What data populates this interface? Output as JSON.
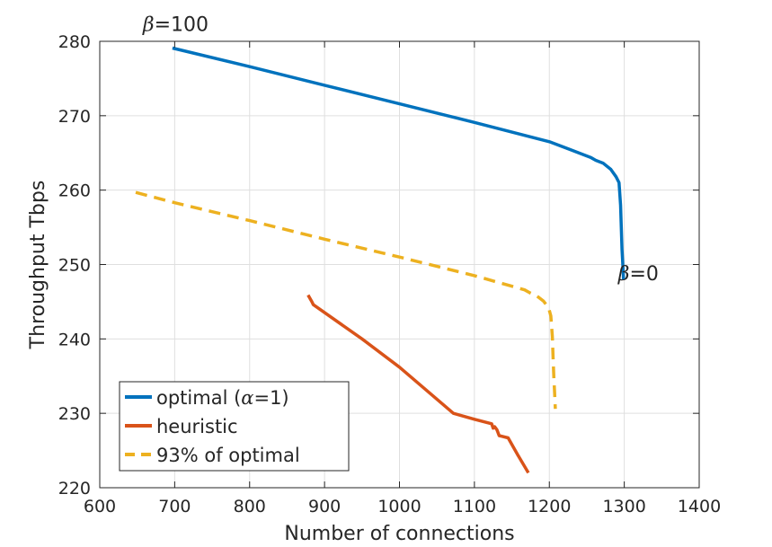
{
  "chart_data": {
    "type": "line",
    "title": "",
    "xlabel": "Number of connections",
    "ylabel": "Throughput Tbps",
    "xlim": [
      600,
      1400
    ],
    "ylim": [
      220,
      280
    ],
    "xticks": [
      600,
      700,
      800,
      900,
      1000,
      1100,
      1200,
      1300,
      1400
    ],
    "yticks": [
      220,
      230,
      240,
      250,
      260,
      270,
      280
    ],
    "xtick_labels": [
      "600",
      "700",
      "800",
      "900",
      "1000",
      "1100",
      "1200",
      "1300",
      "1400"
    ],
    "ytick_labels": [
      "220",
      "230",
      "240",
      "250",
      "260",
      "270",
      "280"
    ],
    "grid": true,
    "legend_position": "bottom-left",
    "series": [
      {
        "name": "optimal (α=1)",
        "legend_prefix": "optimal (",
        "legend_symbol": "α",
        "legend_suffix": "=1)",
        "color": "#0072BD",
        "style": "solid",
        "x": [
          697,
          800,
          900,
          1000,
          1100,
          1200,
          1255,
          1262,
          1272,
          1282,
          1289,
          1293,
          1295,
          1296,
          1297,
          1298,
          1299
        ],
        "y": [
          279.1,
          276.6,
          274.1,
          271.6,
          269.1,
          266.5,
          264.4,
          264.0,
          263.6,
          262.8,
          261.8,
          261.0,
          258.0,
          255.0,
          252.0,
          250.0,
          248.0
        ]
      },
      {
        "name": "heuristic",
        "legend_prefix": "heuristic",
        "legend_symbol": "",
        "legend_suffix": "",
        "color": "#D95319",
        "style": "solid",
        "x": [
          878,
          883,
          885,
          950,
          1000,
          1072,
          1100,
          1123,
          1125,
          1127,
          1130,
          1133,
          1137,
          1145,
          1158,
          1172
        ],
        "y": [
          245.9,
          245.0,
          244.6,
          240.0,
          236.2,
          230.0,
          229.2,
          228.6,
          228.0,
          228.2,
          227.8,
          227.0,
          226.9,
          226.7,
          224.4,
          222.0
        ]
      },
      {
        "name": "93% of optimal",
        "legend_prefix": "93% of optimal",
        "legend_symbol": "",
        "legend_suffix": "",
        "color": "#EDB120",
        "style": "dashed",
        "x": [
          648,
          700,
          800,
          900,
          1000,
          1100,
          1167,
          1174,
          1183,
          1192,
          1199,
          1202,
          1204,
          1205,
          1206,
          1207,
          1208
        ],
        "y": [
          259.7,
          258.3,
          255.9,
          253.4,
          251.0,
          248.5,
          246.6,
          246.2,
          245.8,
          245.1,
          244.2,
          243.1,
          240.3,
          237.5,
          234.7,
          232.8,
          230.6
        ]
      }
    ],
    "annotations": [
      {
        "symbol": "β",
        "text": "=100",
        "x": 697,
        "y": 279.1,
        "placement": "above"
      },
      {
        "symbol": "β",
        "text": "=0",
        "x": 1299,
        "y": 248.0,
        "placement": "right-below"
      }
    ]
  }
}
